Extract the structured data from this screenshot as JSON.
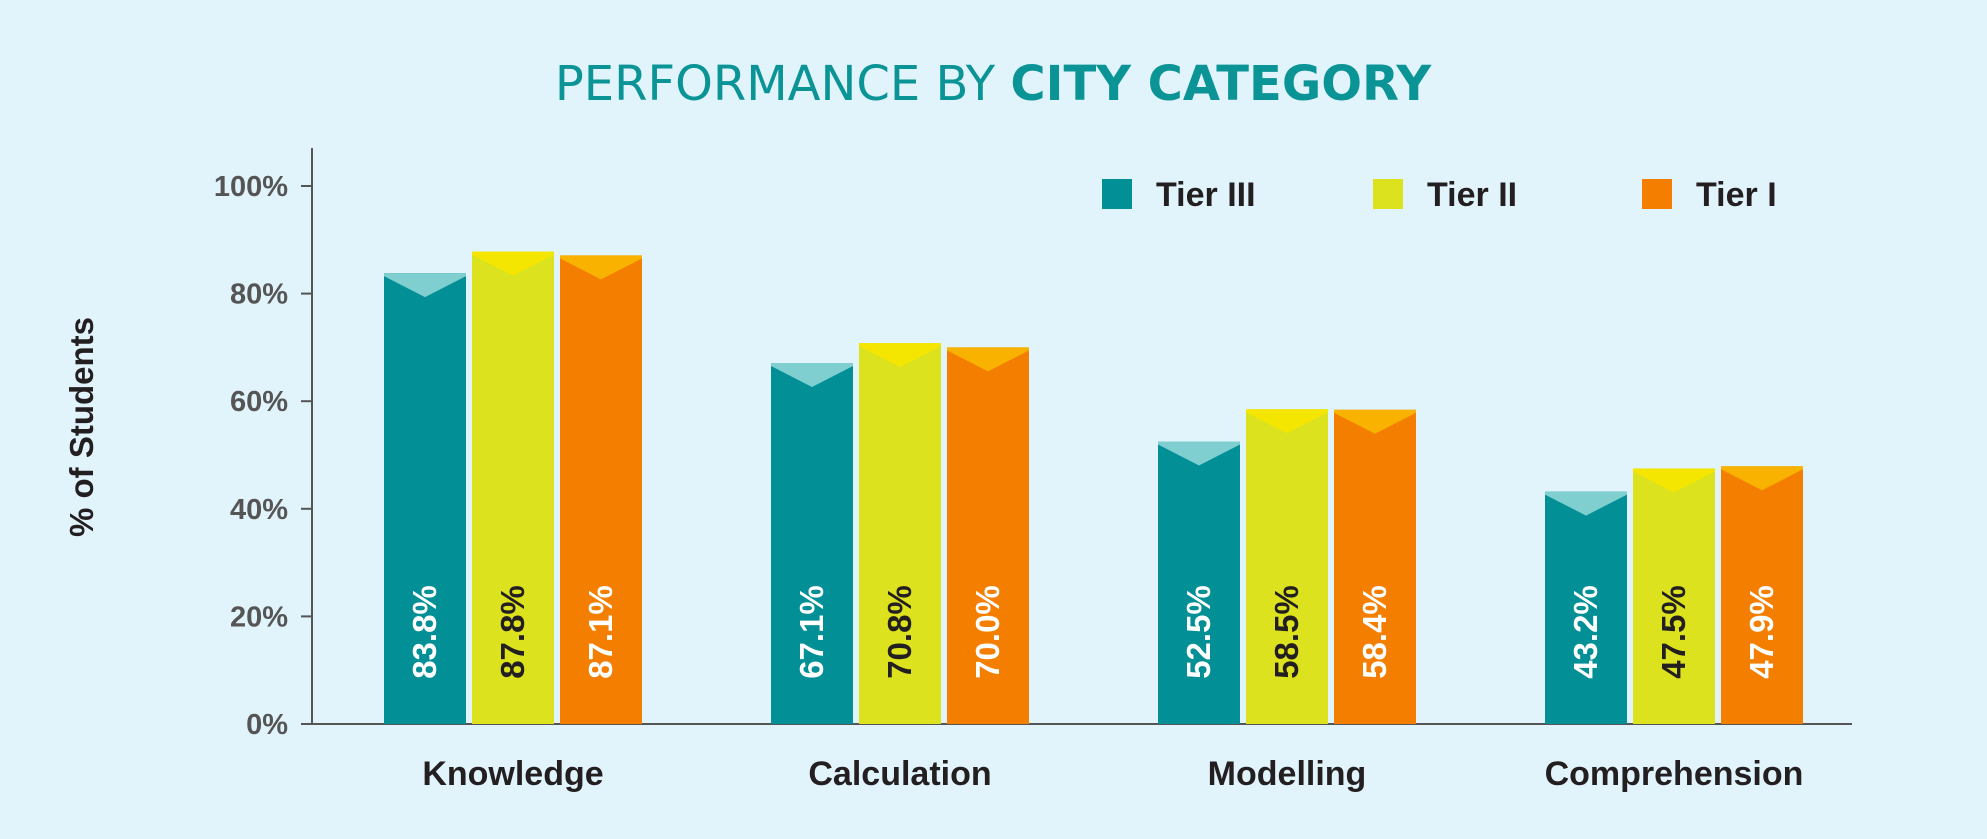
{
  "title": {
    "prefix": "PERFORMANCE BY ",
    "emphasis": "CITY CATEGORY",
    "color": "#0b9496"
  },
  "chart_data": {
    "type": "bar",
    "ylabel": "% of Students",
    "xlabel": "",
    "ylim": [
      0,
      100
    ],
    "yticks": [
      0,
      20,
      40,
      60,
      80,
      100
    ],
    "ytick_labels": [
      "0%",
      "20%",
      "40%",
      "60%",
      "80%",
      "100%"
    ],
    "grid": false,
    "legend_position": "top-right",
    "categories": [
      "Knowledge",
      "Calculation",
      "Modelling",
      "Comprehension"
    ],
    "series": [
      {
        "name": "Tier III",
        "values": [
          83.8,
          67.1,
          52.5,
          43.2
        ],
        "labels": [
          "83.8%",
          "67.1%",
          "52.5%",
          "43.2%"
        ],
        "color": "#028f96",
        "cap_color": "#7fcfd1",
        "label_color": "#ffffff"
      },
      {
        "name": "Tier II",
        "values": [
          87.8,
          70.8,
          58.5,
          47.5
        ],
        "labels": [
          "87.8%",
          "70.8%",
          "58.5%",
          "47.5%"
        ],
        "color": "#dde21f",
        "cap_color": "#f4e600",
        "label_color": "#231f20"
      },
      {
        "name": "Tier I",
        "values": [
          87.1,
          70.0,
          58.4,
          47.9
        ],
        "labels": [
          "87.1%",
          "70.0%",
          "58.4%",
          "47.9%"
        ],
        "color": "#f47e00",
        "cap_color": "#f9b200",
        "label_color": "#ffffff"
      }
    ]
  }
}
